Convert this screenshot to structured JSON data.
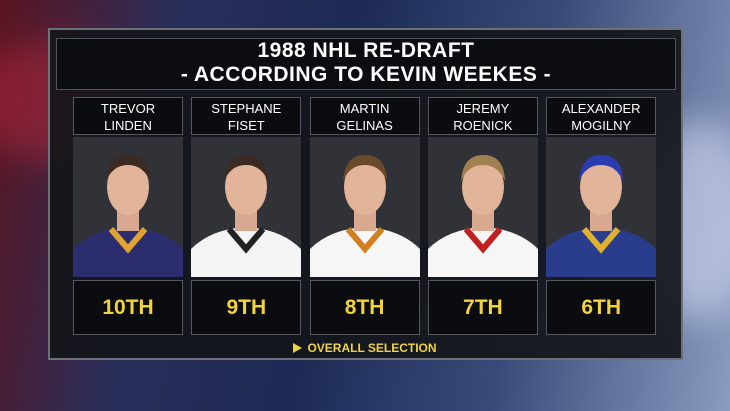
{
  "header": {
    "title": "1988 NHL RE-DRAFT",
    "subtitle": "- ACCORDING TO KEVIN WEEKES -"
  },
  "players": [
    {
      "first": "TREVOR",
      "last": "LINDEN",
      "pick": "10TH"
    },
    {
      "first": "STEPHANE",
      "last": "FISET",
      "pick": "9TH"
    },
    {
      "first": "MARTIN",
      "last": "GELINAS",
      "pick": "8TH"
    },
    {
      "first": "JEREMY",
      "last": "ROENICK",
      "pick": "7TH"
    },
    {
      "first": "ALEXANDER",
      "last": "MOGILNY",
      "pick": "6TH"
    }
  ],
  "footer": {
    "label": "OVERALL SELECTION"
  }
}
